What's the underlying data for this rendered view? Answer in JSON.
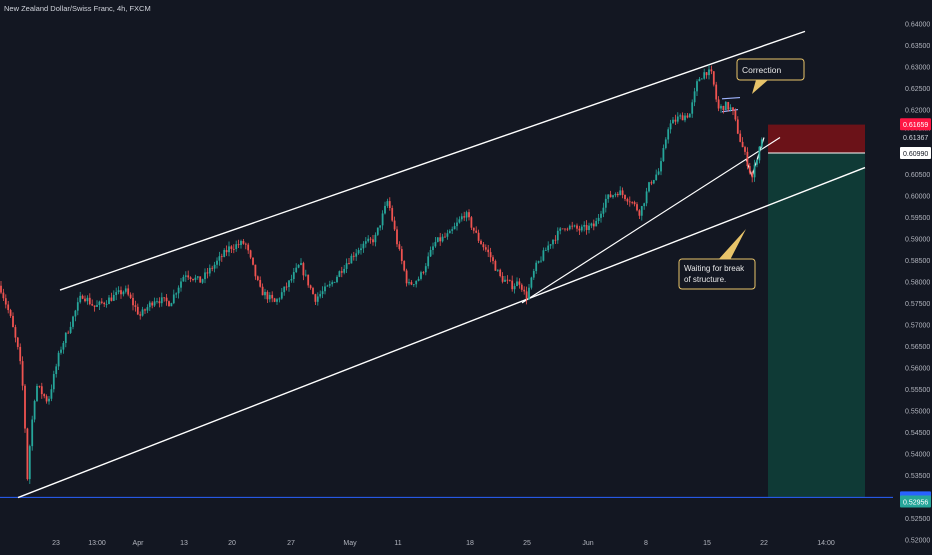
{
  "header": {
    "symbol_title": "New Zealand Dollar/Swiss Franc, 4h, FXCM"
  },
  "colors": {
    "background": "#131722",
    "up": "#26a69a",
    "down": "#ef5350",
    "trendline": "#ffffff",
    "stop_zone": "#6b1218",
    "target_zone": "#0f3a36",
    "baseline": "#2962ff",
    "label_current": "#ff1744",
    "label_blue": "#2962ff",
    "label_bottom": "#26a69a"
  },
  "annotations": {
    "correction": "Correction",
    "waiting_line1": "Waiting for break",
    "waiting_line2": "of structure."
  },
  "price_labels": {
    "current": "0.61659",
    "mid": "0.61367",
    "entry": "0.60990",
    "baseline": "0.52976",
    "bottom": "0.52956"
  },
  "chart_data": {
    "type": "candlestick",
    "title": "New Zealand Dollar/Swiss Franc, 4h, FXCM",
    "ylim": [
      0.5175,
      0.6455
    ],
    "y_ticks": [
      "0.52000",
      "0.52500",
      "0.53000",
      "0.53500",
      "0.54000",
      "0.54500",
      "0.55000",
      "0.55500",
      "0.56000",
      "0.56500",
      "0.57000",
      "0.57500",
      "0.58000",
      "0.58500",
      "0.59000",
      "0.59500",
      "0.60000",
      "0.60500",
      "0.61000",
      "0.61500",
      "0.62000",
      "0.62500",
      "0.63000",
      "0.63500",
      "0.64000",
      "0.64500"
    ],
    "x_ticks": [
      "23",
      "13:00",
      "Apr",
      "13",
      "20",
      "27",
      "May",
      "11",
      "18",
      "25",
      "Jun",
      "8",
      "15",
      "22",
      "14:00"
    ],
    "price_path": [
      {
        "t": 0,
        "p": 0.579
      },
      {
        "t": 10,
        "p": 0.572
      },
      {
        "t": 18,
        "p": 0.564
      },
      {
        "t": 22,
        "p": 0.558
      },
      {
        "t": 26,
        "p": 0.542
      },
      {
        "t": 28,
        "p": 0.531
      },
      {
        "t": 30,
        "p": 0.543
      },
      {
        "t": 36,
        "p": 0.556
      },
      {
        "t": 48,
        "p": 0.552
      },
      {
        "t": 60,
        "p": 0.564
      },
      {
        "t": 72,
        "p": 0.571
      },
      {
        "t": 82,
        "p": 0.577
      },
      {
        "t": 95,
        "p": 0.574
      },
      {
        "t": 110,
        "p": 0.576
      },
      {
        "t": 125,
        "p": 0.578
      },
      {
        "t": 140,
        "p": 0.572
      },
      {
        "t": 155,
        "p": 0.576
      },
      {
        "t": 170,
        "p": 0.575
      },
      {
        "t": 185,
        "p": 0.582
      },
      {
        "t": 200,
        "p": 0.58
      },
      {
        "t": 215,
        "p": 0.584
      },
      {
        "t": 230,
        "p": 0.588
      },
      {
        "t": 245,
        "p": 0.589
      },
      {
        "t": 260,
        "p": 0.578
      },
      {
        "t": 275,
        "p": 0.575
      },
      {
        "t": 290,
        "p": 0.58
      },
      {
        "t": 300,
        "p": 0.584
      },
      {
        "t": 315,
        "p": 0.576
      },
      {
        "t": 330,
        "p": 0.579
      },
      {
        "t": 345,
        "p": 0.584
      },
      {
        "t": 360,
        "p": 0.588
      },
      {
        "t": 375,
        "p": 0.59
      },
      {
        "t": 388,
        "p": 0.599
      },
      {
        "t": 398,
        "p": 0.588
      },
      {
        "t": 408,
        "p": 0.579
      },
      {
        "t": 420,
        "p": 0.581
      },
      {
        "t": 435,
        "p": 0.589
      },
      {
        "t": 450,
        "p": 0.591
      },
      {
        "t": 465,
        "p": 0.596
      },
      {
        "t": 478,
        "p": 0.59
      },
      {
        "t": 490,
        "p": 0.586
      },
      {
        "t": 500,
        "p": 0.581
      },
      {
        "t": 512,
        "p": 0.579
      },
      {
        "t": 520,
        "p": 0.58
      },
      {
        "t": 526,
        "p": 0.576
      },
      {
        "t": 535,
        "p": 0.583
      },
      {
        "t": 550,
        "p": 0.589
      },
      {
        "t": 565,
        "p": 0.593
      },
      {
        "t": 580,
        "p": 0.592
      },
      {
        "t": 595,
        "p": 0.593
      },
      {
        "t": 605,
        "p": 0.599
      },
      {
        "t": 618,
        "p": 0.601
      },
      {
        "t": 630,
        "p": 0.599
      },
      {
        "t": 640,
        "p": 0.596
      },
      {
        "t": 650,
        "p": 0.603
      },
      {
        "t": 660,
        "p": 0.606
      },
      {
        "t": 668,
        "p": 0.616
      },
      {
        "t": 678,
        "p": 0.618
      },
      {
        "t": 690,
        "p": 0.619
      },
      {
        "t": 698,
        "p": 0.627
      },
      {
        "t": 706,
        "p": 0.629
      },
      {
        "t": 712,
        "p": 0.628
      },
      {
        "t": 718,
        "p": 0.62
      },
      {
        "t": 725,
        "p": 0.621
      },
      {
        "t": 732,
        "p": 0.62
      },
      {
        "t": 740,
        "p": 0.613
      },
      {
        "t": 747,
        "p": 0.608
      },
      {
        "t": 752,
        "p": 0.604
      },
      {
        "t": 758,
        "p": 0.61
      },
      {
        "t": 762,
        "p": 0.6137
      }
    ],
    "trendlines": [
      {
        "name": "channel-top",
        "from": {
          "t": 60,
          "p": 0.578
        },
        "to": {
          "t": 805,
          "p": 0.6382
        }
      },
      {
        "name": "channel-bottom",
        "from": {
          "t": 18,
          "p": 0.5297
        },
        "to": {
          "t": 865,
          "p": 0.6065
        }
      },
      {
        "name": "inner-support",
        "from": {
          "t": 522,
          "p": 0.575
        },
        "to": {
          "t": 780,
          "p": 0.6135
        }
      },
      {
        "name": "wedge-upper",
        "from": {
          "t": 722,
          "p": 0.6225
        },
        "to": {
          "t": 740,
          "p": 0.6228
        }
      },
      {
        "name": "wedge-lower",
        "from": {
          "t": 722,
          "p": 0.6195
        },
        "to": {
          "t": 738,
          "p": 0.62
        }
      },
      {
        "name": "flag-a",
        "from": {
          "t": 752,
          "p": 0.6045
        },
        "to": {
          "t": 764,
          "p": 0.6135
        }
      },
      {
        "name": "flag-b",
        "from": {
          "t": 752,
          "p": 0.6045
        },
        "to": {
          "t": 746,
          "p": 0.6085
        }
      }
    ],
    "position": {
      "entry": 0.6099,
      "stop": 0.6165,
      "target": 0.5298,
      "t_start": 768,
      "t_end": 865
    },
    "baseline_price": 0.52976,
    "grid": false
  }
}
